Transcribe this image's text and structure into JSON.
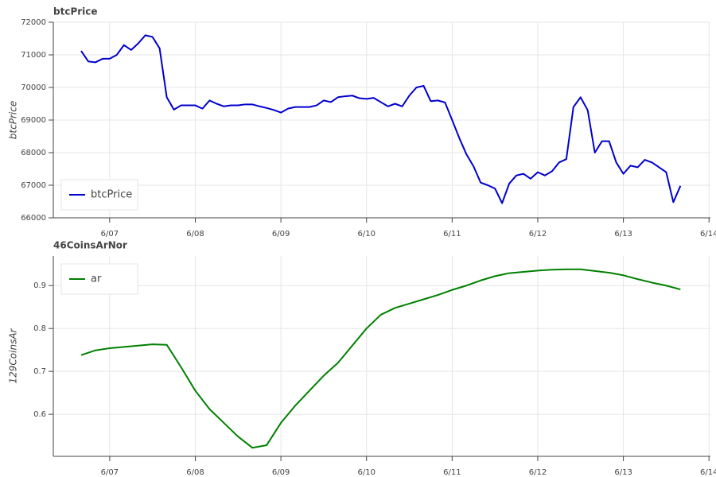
{
  "chart_data": [
    {
      "type": "line",
      "title": "btcPrice",
      "y_label": "btcPrice",
      "legend": "bottom-left",
      "grid": true,
      "xlim": [
        -15.8,
        168.4
      ],
      "xticks": [
        {
          "value": 0,
          "label": "6/07"
        },
        {
          "value": 24,
          "label": "6/08"
        },
        {
          "value": 48,
          "label": "6/09"
        },
        {
          "value": 72,
          "label": "6/10"
        },
        {
          "value": 96,
          "label": "6/11"
        },
        {
          "value": 120,
          "label": "6/12"
        },
        {
          "value": 144,
          "label": "6/13"
        },
        {
          "value": 168,
          "label": "6/14"
        }
      ],
      "ylim": [
        66000,
        72000
      ],
      "yticks": [
        66000,
        67000,
        68000,
        69000,
        70000,
        71000,
        72000
      ],
      "x": [
        -8,
        -6,
        -4,
        -2,
        0,
        2,
        4,
        6,
        8,
        10,
        12,
        14,
        16,
        18,
        20,
        22,
        24,
        26,
        28,
        30,
        32,
        34,
        36,
        38,
        40,
        42,
        44,
        46,
        48,
        50,
        52,
        54,
        56,
        58,
        60,
        62,
        64,
        66,
        68,
        70,
        72,
        74,
        76,
        78,
        80,
        82,
        84,
        86,
        88,
        90,
        92,
        94,
        96,
        98,
        100,
        102,
        104,
        106,
        108,
        110,
        112,
        114,
        116,
        118,
        120,
        122,
        124,
        126,
        128,
        130,
        132,
        134,
        136,
        138,
        140,
        142,
        144,
        146,
        148,
        150,
        152,
        154,
        156,
        158,
        160
      ],
      "series": [
        {
          "name": "btcPrice",
          "color": "#0000cd",
          "values": [
            71120,
            70800,
            70770,
            70880,
            70880,
            71000,
            71300,
            71150,
            71350,
            71600,
            71550,
            71200,
            69700,
            69320,
            69450,
            69450,
            69450,
            69350,
            69600,
            69500,
            69420,
            69450,
            69450,
            69480,
            69480,
            69420,
            69370,
            69310,
            69230,
            69350,
            69400,
            69400,
            69400,
            69450,
            69600,
            69550,
            69700,
            69730,
            69750,
            69670,
            69650,
            69680,
            69550,
            69420,
            69500,
            69420,
            69750,
            70000,
            70050,
            69580,
            69600,
            69540,
            69000,
            68450,
            67950,
            67580,
            67080,
            67000,
            66900,
            66450,
            67050,
            67300,
            67350,
            67200,
            67400,
            67300,
            67430,
            67700,
            67800,
            69400,
            69700,
            69300,
            68000,
            68350,
            68350,
            67700,
            67350,
            67600,
            67550,
            67780,
            67700,
            67550,
            67400,
            66480,
            66980
          ]
        }
      ]
    },
    {
      "type": "line",
      "title": "46CoinsArNor",
      "y_label": "129CoinsAr",
      "legend": "top-left",
      "grid": true,
      "xlim": [
        -15.8,
        168.4
      ],
      "xticks": [
        {
          "value": 0,
          "label": "6/07"
        },
        {
          "value": 24,
          "label": "6/08"
        },
        {
          "value": 48,
          "label": "6/09"
        },
        {
          "value": 72,
          "label": "6/10"
        },
        {
          "value": 96,
          "label": "6/11"
        },
        {
          "value": 120,
          "label": "6/12"
        },
        {
          "value": 144,
          "label": "6/13"
        },
        {
          "value": 168,
          "label": "6/14"
        }
      ],
      "ylim": [
        0.502,
        0.969
      ],
      "yticks": [
        0.6,
        0.7,
        0.8,
        0.9
      ],
      "x": [
        -8,
        -4,
        0,
        4,
        8,
        12,
        16,
        20,
        24,
        28,
        32,
        36,
        40,
        44,
        48,
        52,
        56,
        60,
        64,
        68,
        72,
        76,
        80,
        84,
        88,
        92,
        96,
        100,
        104,
        108,
        112,
        116,
        120,
        124,
        128,
        132,
        136,
        140,
        144,
        148,
        152,
        156,
        160
      ],
      "series": [
        {
          "name": "ar",
          "color": "#008000",
          "values": [
            0.738,
            0.749,
            0.754,
            0.757,
            0.76,
            0.763,
            0.762,
            0.71,
            0.655,
            0.612,
            0.58,
            0.548,
            0.522,
            0.528,
            0.58,
            0.62,
            0.655,
            0.69,
            0.72,
            0.76,
            0.8,
            0.832,
            0.848,
            0.858,
            0.868,
            0.878,
            0.89,
            0.9,
            0.912,
            0.922,
            0.929,
            0.932,
            0.935,
            0.937,
            0.938,
            0.938,
            0.934,
            0.93,
            0.924,
            0.915,
            0.907,
            0.9,
            0.891
          ]
        }
      ]
    }
  ]
}
